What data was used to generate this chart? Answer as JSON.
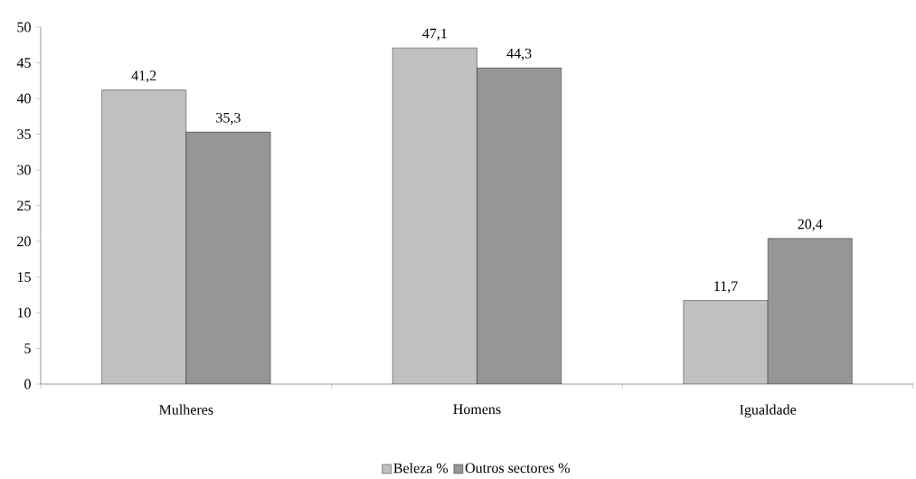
{
  "chart_data": {
    "type": "bar",
    "categories": [
      "Mulheres",
      "Homens",
      "Igualdade"
    ],
    "series": [
      {
        "name": "Beleza %",
        "color": "#c0c0c0",
        "values": [
          41.2,
          47.1,
          11.7
        ],
        "value_labels": [
          "41,2",
          "47,1",
          "11,7"
        ]
      },
      {
        "name": "Outros sectores %",
        "color": "#969696",
        "values": [
          35.3,
          44.3,
          20.4
        ],
        "value_labels": [
          "35,3",
          "44,3",
          "20,4"
        ]
      }
    ],
    "ylim": [
      0,
      50
    ],
    "yticks": [
      0,
      5,
      10,
      15,
      20,
      25,
      30,
      35,
      40,
      45,
      50
    ],
    "grid": false,
    "legend": "bottom"
  }
}
